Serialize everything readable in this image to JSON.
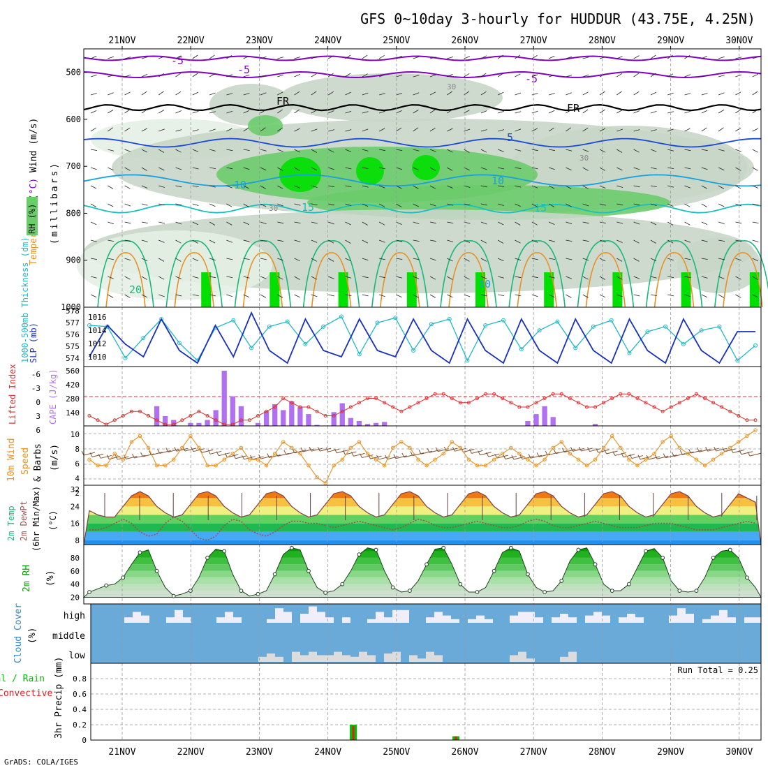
{
  "title": "GFS 0~10day 3-hourly for HUDDUR (43.75E, 4.25N)",
  "credit": "GrADS: COLA/IGES",
  "colors": {
    "rh_light": "#e6f0e6",
    "rh_mid": "#c8d6c8",
    "rh_green": "#6ccc6c",
    "rh_bright": "#00e000",
    "temp_cold": "#8000c0",
    "temp_freeze": "#000000",
    "temp_cool": "#1848d8",
    "temp_mild": "#18a0e0",
    "temp_warm": "#18c0c0",
    "temp_warm2": "#18b878",
    "temp_hot": "#e89020",
    "slp": "#1830c0",
    "thickness": "#20b8c8",
    "lifted": "#e03030",
    "cape": "#b070f0",
    "wind_speed": "#e89020",
    "wind_barb": "#805030",
    "cloud_bg": "#6aaad8",
    "cloud_fill": "#f0eef8",
    "rain": "#00c000",
    "convective": "#e02020",
    "dewpt": "#a05050",
    "rh_curve": "#00a000"
  },
  "x_axis": {
    "days": [
      "21NOV",
      "22NOV",
      "23NOV",
      "24NOV",
      "25NOV",
      "26NOV",
      "27NOV",
      "28NOV",
      "29NOV",
      "30NOV"
    ]
  },
  "panels": [
    {
      "id": "upper-air",
      "labels": [
        "Wind (m/s)",
        "Temperature (°C)",
        "RH (%)",
        "(millibars)"
      ],
      "label_wind": "Wind",
      "label_units_ms": "(m/s)",
      "label_temperature": "Temperature",
      "label_celsius": "(°C)",
      "label_rh": "RH (%)",
      "label_pressure": "(millibars)",
      "ylim": [
        1000,
        450
      ],
      "yticks": [
        "500",
        "600",
        "700",
        "800",
        "900",
        "1000"
      ],
      "contour_labels": [
        "-5",
        "-5",
        "FR",
        "FR",
        "-5",
        "5",
        "10",
        "10",
        "15",
        "15",
        "20",
        "10",
        "30",
        "30",
        "30"
      ]
    },
    {
      "id": "slp-thickness",
      "label_thickness": "1000-500mb Thickness (dm)",
      "label_slp": "SLP (mb)",
      "yticks_left": [
        "574",
        "575",
        "576",
        "577",
        "578"
      ],
      "yticks_right": [
        "1010",
        "1012",
        "1014",
        "1016"
      ]
    },
    {
      "id": "stability",
      "label_lifted": "Lifted Index",
      "label_cape": "CAPE (J/kg)",
      "yticks_left": [
        "-6",
        "-3",
        "0",
        "3",
        "6"
      ],
      "yticks_right": [
        "560",
        "420",
        "280",
        "140"
      ]
    },
    {
      "id": "wind10m",
      "label_1": "10m Wind",
      "label_2": "Speed",
      "label_3": "& Barbs",
      "label_units": "(m/s)",
      "yticks": [
        "10",
        "8",
        "6",
        "4",
        "2"
      ]
    },
    {
      "id": "temp2m",
      "label_1": "2m Temp",
      "label_2": "2m DewPt",
      "label_3": "(6hr Min/Max)",
      "label_units": "(°C)",
      "yticks": [
        "32",
        "24",
        "16",
        "8"
      ]
    },
    {
      "id": "rh2m",
      "label_1": "2m RH",
      "label_units": "(%)",
      "yticks": [
        "80",
        "60",
        "40",
        "20"
      ]
    },
    {
      "id": "cloud",
      "label_1": "Cloud Cover",
      "label_units": "(%)",
      "layers": [
        "high",
        "middle",
        "low"
      ]
    },
    {
      "id": "precip",
      "label_1": "Total / Rain",
      "label_2": "Convective",
      "label_3": "3hr Precip (mm)",
      "yticks": [
        "0.8",
        "0.6",
        "0.4",
        "0.2",
        "0"
      ],
      "run_total": "Run Total = 0.25"
    }
  ],
  "chart_data": [
    {
      "type": "line",
      "name": "SLP (mb)",
      "x": [
        "21NOV 00Z",
        "21NOV 06Z",
        "21NOV 12Z",
        "21NOV 18Z",
        "22NOV 00Z",
        "22NOV 06Z",
        "22NOV 12Z",
        "22NOV 18Z",
        "23NOV 00Z",
        "23NOV 06Z",
        "23NOV 12Z",
        "23NOV 18Z",
        "24NOV 00Z",
        "24NOV 06Z",
        "24NOV 12Z",
        "24NOV 18Z",
        "25NOV 00Z",
        "25NOV 06Z",
        "25NOV 12Z",
        "25NOV 18Z",
        "26NOV 00Z",
        "26NOV 06Z",
        "26NOV 12Z",
        "26NOV 18Z",
        "27NOV 00Z",
        "27NOV 06Z",
        "27NOV 12Z",
        "27NOV 18Z",
        "28NOV 00Z",
        "28NOV 06Z",
        "28NOV 12Z",
        "28NOV 18Z",
        "29NOV 00Z",
        "29NOV 06Z",
        "29NOV 12Z",
        "29NOV 18Z",
        "30NOV 00Z",
        "30NOV 06Z"
      ],
      "values": [
        1010,
        1015,
        1012,
        1010,
        1016,
        1011,
        1009,
        1015,
        1010,
        1017,
        1011,
        1009,
        1016,
        1011,
        1010,
        1016,
        1011,
        1010,
        1016,
        1011,
        1009,
        1016,
        1011,
        1009,
        1016,
        1011,
        1009,
        1016,
        1011,
        1009,
        1016,
        1011,
        1009,
        1016,
        1011,
        1009,
        1014,
        1014
      ],
      "ylim": [
        1009,
        1017
      ]
    },
    {
      "type": "line",
      "name": "1000-500mb Thickness (dm)",
      "values": [
        577.0,
        576.9,
        574.4,
        576.0,
        577.5,
        575.6,
        574.2,
        576.8,
        577.4,
        575.2,
        576.9,
        577.3,
        575.5,
        576.9,
        577.7,
        574.7,
        577.2,
        577.6,
        575.0,
        577.1,
        577.5,
        574.2,
        577.0,
        577.4,
        575.1,
        576.6,
        577.3,
        575.2,
        576.9,
        577.4,
        574.8,
        576.5,
        576.9,
        575.5,
        576.6,
        576.9,
        574.2,
        575.4
      ],
      "ylim": [
        574,
        578
      ]
    },
    {
      "type": "bar",
      "name": "CAPE (J/kg)",
      "values": [
        0,
        0,
        0,
        0,
        0,
        0,
        0,
        0,
        200,
        100,
        60,
        0,
        30,
        30,
        60,
        160,
        560,
        300,
        200,
        0,
        30,
        150,
        220,
        160,
        250,
        190,
        120,
        10,
        0,
        140,
        230,
        80,
        50,
        20,
        30,
        40,
        0,
        0,
        0,
        0,
        0,
        0,
        0,
        0,
        0,
        0,
        0,
        0,
        0,
        0,
        0,
        0,
        50,
        120,
        200,
        90,
        0,
        0,
        0,
        0,
        20,
        0,
        0,
        0,
        0,
        0,
        0,
        0,
        0,
        0,
        0,
        0,
        0,
        0,
        0,
        0,
        0,
        0,
        0,
        0
      ],
      "ylim": [
        0,
        560
      ]
    },
    {
      "type": "line",
      "name": "Lifted Index",
      "values": [
        4,
        5,
        6,
        5,
        4,
        3,
        3,
        4,
        5,
        6,
        6,
        5,
        4,
        3,
        4,
        5,
        6,
        6,
        5,
        5,
        4,
        3,
        2,
        0,
        1,
        2,
        2,
        3,
        4,
        4,
        3,
        2,
        1,
        0,
        0,
        1,
        2,
        3,
        2,
        1,
        0,
        -1,
        -1,
        0,
        1,
        1,
        0,
        -1,
        -1,
        0,
        1,
        2,
        2,
        1,
        0,
        -1,
        -1,
        0,
        1,
        2,
        2,
        1,
        0,
        -1,
        -1,
        0,
        1,
        2,
        3,
        2,
        1,
        0,
        -1,
        0,
        1,
        2,
        3,
        4,
        5,
        5
      ],
      "ylim": [
        6,
        -6
      ]
    },
    {
      "type": "line",
      "name": "10m Wind Speed (m/s)",
      "values": [
        6,
        5,
        5,
        7,
        6,
        9,
        10,
        8,
        5,
        5,
        6,
        8,
        10,
        8,
        5,
        5,
        6,
        7,
        8,
        6,
        6,
        5,
        7,
        9,
        8,
        7,
        5,
        3,
        2,
        5,
        6,
        8,
        9,
        7,
        6,
        5,
        8,
        9,
        8,
        6,
        5,
        6,
        7,
        9,
        8,
        6,
        5,
        5,
        6,
        7,
        8,
        7,
        6,
        5,
        6,
        8,
        9,
        7,
        6,
        5,
        6,
        8,
        10,
        8,
        6,
        5,
        6,
        7,
        9,
        10,
        8,
        7,
        6,
        5,
        6,
        7,
        8,
        9,
        10,
        11
      ],
      "ylim": [
        2,
        11
      ]
    },
    {
      "type": "area",
      "name": "2m Temp (°C)",
      "values": [
        22,
        20,
        19,
        19,
        24,
        29,
        31,
        29,
        24,
        21,
        19,
        20,
        25,
        30,
        31,
        29,
        24,
        21,
        19,
        20,
        25,
        30,
        31,
        29,
        24,
        21,
        19,
        20,
        25,
        30,
        31,
        29,
        24,
        21,
        19,
        20,
        25,
        30,
        31,
        29,
        24,
        21,
        19,
        20,
        25,
        30,
        31,
        29,
        24,
        21,
        19,
        20,
        25,
        30,
        31,
        29,
        24,
        21,
        19,
        20,
        25,
        30,
        31,
        29,
        24,
        21,
        19,
        20,
        25,
        30,
        31,
        29,
        24,
        21,
        19,
        20,
        25,
        30,
        28,
        26
      ],
      "ylim": [
        6,
        34
      ]
    },
    {
      "type": "line",
      "name": "2m DewPt (°C)",
      "values": [
        13,
        13,
        14,
        16,
        18,
        16,
        12,
        10,
        11,
        16,
        19,
        17,
        13,
        9,
        8,
        10,
        15,
        18,
        17,
        13,
        11,
        10,
        12,
        15,
        17,
        17,
        16,
        16,
        15,
        14,
        15,
        16,
        17,
        16,
        15,
        14,
        13,
        14,
        16,
        18,
        17,
        15,
        14,
        14,
        15,
        16,
        17,
        16,
        15,
        14,
        14,
        15,
        17,
        18,
        17,
        15,
        14,
        14,
        15,
        16,
        17,
        16,
        15,
        14,
        14,
        14,
        15,
        16,
        16,
        16,
        15,
        14,
        13,
        13,
        13,
        14,
        15,
        16,
        17,
        16
      ],
      "ylim": [
        6,
        34
      ]
    },
    {
      "type": "area",
      "name": "2m RH (%)",
      "values": [
        28,
        33,
        38,
        40,
        50,
        70,
        88,
        92,
        60,
        35,
        22,
        25,
        30,
        50,
        80,
        93,
        90,
        55,
        30,
        22,
        25,
        30,
        55,
        85,
        95,
        92,
        60,
        35,
        27,
        30,
        40,
        60,
        85,
        95,
        92,
        60,
        35,
        28,
        30,
        45,
        70,
        93,
        95,
        70,
        40,
        28,
        28,
        35,
        60,
        88,
        95,
        90,
        55,
        35,
        28,
        30,
        45,
        75,
        92,
        95,
        70,
        40,
        30,
        30,
        40,
        65,
        90,
        94,
        80,
        45,
        30,
        28,
        30,
        50,
        80,
        90,
        92,
        80,
        50,
        35
      ],
      "ylim": [
        10,
        100
      ]
    },
    {
      "type": "bar",
      "name": "Cloud Cover high (%)",
      "values": [
        0,
        0,
        0,
        0,
        30,
        60,
        40,
        0,
        0,
        30,
        70,
        30,
        0,
        0,
        0,
        30,
        60,
        30,
        0,
        0,
        0,
        20,
        80,
        60,
        0,
        50,
        90,
        60,
        30,
        0,
        30,
        0,
        0,
        20,
        60,
        30,
        70,
        70,
        0,
        0,
        30,
        60,
        40,
        20,
        0,
        20,
        40,
        20,
        0,
        0,
        40,
        60,
        60,
        30,
        0,
        30,
        50,
        30,
        0,
        40,
        60,
        40,
        0,
        30,
        50,
        30,
        0,
        0,
        0,
        40,
        80,
        50,
        0,
        20,
        40,
        70,
        30,
        0,
        30,
        30
      ],
      "ylim": [
        0,
        100
      ]
    },
    {
      "type": "bar",
      "name": "Cloud Cover low (%)",
      "values": [
        0,
        0,
        0,
        0,
        0,
        0,
        0,
        0,
        0,
        0,
        0,
        0,
        0,
        0,
        0,
        0,
        0,
        0,
        0,
        0,
        30,
        50,
        30,
        0,
        60,
        40,
        60,
        40,
        40,
        60,
        40,
        30,
        60,
        40,
        0,
        50,
        60,
        0,
        40,
        20,
        60,
        40,
        0,
        0,
        0,
        0,
        0,
        0,
        0,
        0,
        40,
        60,
        20,
        0,
        0,
        0,
        30,
        60,
        0,
        0,
        0,
        0,
        0,
        0,
        0,
        0,
        0,
        0,
        0,
        0,
        0,
        0,
        0,
        0,
        0,
        0,
        0,
        0,
        0,
        0
      ],
      "ylim": [
        0,
        100
      ]
    },
    {
      "type": "bar",
      "name": "3hr Precip Total (mm)",
      "x": [
        "24NOV 09Z",
        "25NOV 21Z"
      ],
      "values": [
        0.2,
        0.05
      ],
      "ylim": [
        0,
        1
      ]
    },
    {
      "type": "bar",
      "name": "3hr Precip Convective (mm)",
      "x": [
        "24NOV 09Z",
        "25NOV 21Z"
      ],
      "values": [
        0.18,
        0.05
      ],
      "ylim": [
        0,
        1
      ]
    }
  ]
}
